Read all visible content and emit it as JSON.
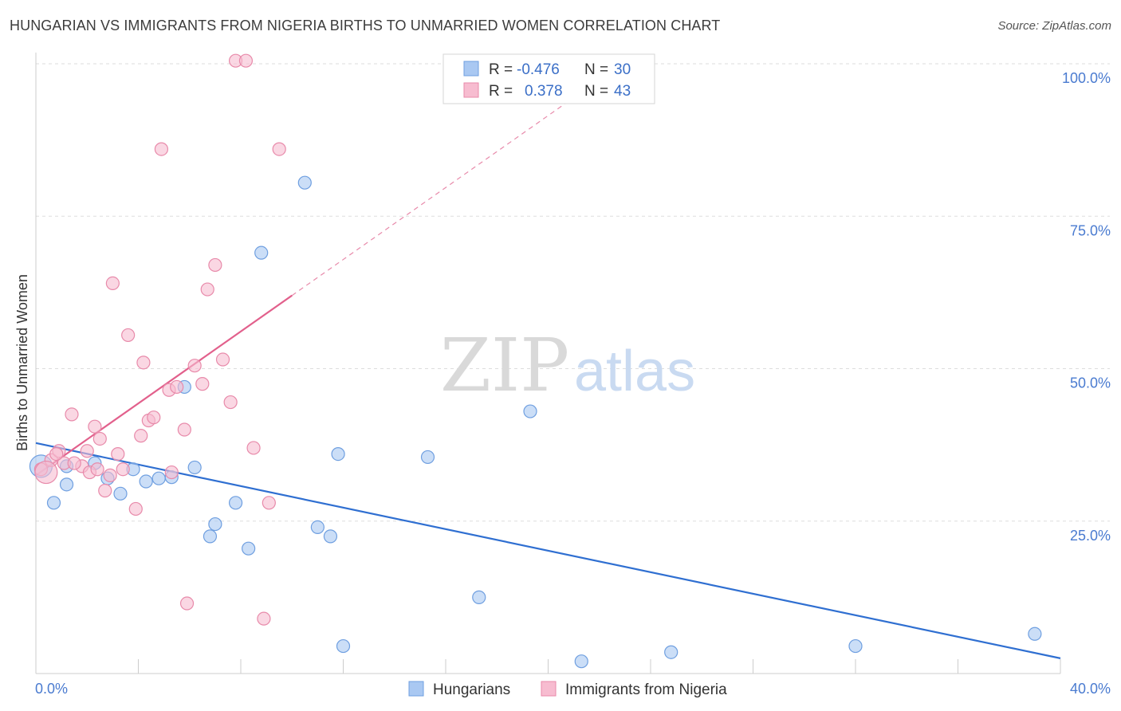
{
  "title": "HUNGARIAN VS IMMIGRANTS FROM NIGERIA BIRTHS TO UNMARRIED WOMEN CORRELATION CHART",
  "source": "Source: ZipAtlas.com",
  "watermark": {
    "part1": "ZIP",
    "part2": "atlas"
  },
  "legend_box": {
    "rows": [
      {
        "r_label": "R =",
        "r_value": "-0.476",
        "n_label": "N =",
        "n_value": "30",
        "color": "#a9c8f2",
        "stroke": "#6f9fe0"
      },
      {
        "r_label": "R =",
        "r_value": "0.378",
        "n_label": "N =",
        "n_value": "43",
        "color": "#f7bcd0",
        "stroke": "#e88aaa"
      }
    ]
  },
  "colors": {
    "blue_fill": "#a9c8f2",
    "blue_stroke": "#6f9fe0",
    "blue_line": "#2f6fd1",
    "pink_fill": "#f7bcd0",
    "pink_stroke": "#e88aaa",
    "pink_line": "#e2608c",
    "grid": "#dddddd",
    "axis_text": "#4a7bd0"
  },
  "chart_data": {
    "type": "scatter",
    "xlabel": "",
    "ylabel": "Births to Unmarried Women",
    "xlim": [
      0,
      40
    ],
    "ylim": [
      0,
      105
    ],
    "x_tick_labels": [
      "0.0%",
      "40.0%"
    ],
    "y_ticks": [
      25,
      50,
      75,
      100
    ],
    "y_tick_labels": [
      "25.0%",
      "50.0%",
      "75.0%",
      "100.0%"
    ],
    "legend": [
      "Hungarians",
      "Immigrants from Nigeria"
    ],
    "series": [
      {
        "name": "Hungarians",
        "points": [
          [
            0.2,
            34.0
          ],
          [
            0.7,
            28.0
          ],
          [
            1.2,
            31.0
          ],
          [
            2.3,
            34.5
          ],
          [
            2.8,
            32.0
          ],
          [
            3.3,
            29.5
          ],
          [
            3.8,
            33.5
          ],
          [
            4.3,
            31.5
          ],
          [
            4.8,
            32.0
          ],
          [
            5.3,
            32.2
          ],
          [
            5.8,
            47.0
          ],
          [
            6.2,
            33.8
          ],
          [
            6.8,
            22.5
          ],
          [
            7.0,
            24.5
          ],
          [
            7.8,
            28.0
          ],
          [
            8.3,
            20.5
          ],
          [
            8.8,
            69.0
          ],
          [
            10.5,
            80.5
          ],
          [
            11.0,
            24.0
          ],
          [
            11.5,
            22.5
          ],
          [
            11.8,
            36.0
          ],
          [
            12.0,
            4.5
          ],
          [
            15.3,
            35.5
          ],
          [
            17.3,
            12.5
          ],
          [
            19.3,
            43.0
          ],
          [
            21.3,
            2.0
          ],
          [
            24.8,
            3.5
          ],
          [
            32.0,
            4.5
          ],
          [
            39.0,
            6.5
          ],
          [
            1.2,
            34.0
          ]
        ],
        "trend": {
          "x": [
            0,
            40
          ],
          "y": [
            37.8,
            2.5
          ]
        }
      },
      {
        "name": "Immigrants from Nigeria",
        "points": [
          [
            0.2,
            33.5
          ],
          [
            0.6,
            35.0
          ],
          [
            0.9,
            36.5
          ],
          [
            1.1,
            34.5
          ],
          [
            1.4,
            42.5
          ],
          [
            1.8,
            34.0
          ],
          [
            2.0,
            36.5
          ],
          [
            2.1,
            33.0
          ],
          [
            2.3,
            40.5
          ],
          [
            2.5,
            38.5
          ],
          [
            2.7,
            30.0
          ],
          [
            2.9,
            32.5
          ],
          [
            3.0,
            64.0
          ],
          [
            3.2,
            36.0
          ],
          [
            3.4,
            33.5
          ],
          [
            3.6,
            55.5
          ],
          [
            3.9,
            27.0
          ],
          [
            4.1,
            39.0
          ],
          [
            4.2,
            51.0
          ],
          [
            4.4,
            41.5
          ],
          [
            4.6,
            42.0
          ],
          [
            4.9,
            86.0
          ],
          [
            5.2,
            46.5
          ],
          [
            5.3,
            33.0
          ],
          [
            5.5,
            47.0
          ],
          [
            5.8,
            40.0
          ],
          [
            5.9,
            11.5
          ],
          [
            6.2,
            50.5
          ],
          [
            6.5,
            47.5
          ],
          [
            6.7,
            63.0
          ],
          [
            7.0,
            67.0
          ],
          [
            7.3,
            51.5
          ],
          [
            7.6,
            44.5
          ],
          [
            7.8,
            100.5
          ],
          [
            8.2,
            100.5
          ],
          [
            8.5,
            37.0
          ],
          [
            8.9,
            9.0
          ],
          [
            9.1,
            28.0
          ],
          [
            9.5,
            86.0
          ],
          [
            1.5,
            34.5
          ],
          [
            0.8,
            36.0
          ],
          [
            2.4,
            33.5
          ],
          [
            0.4,
            33.0
          ]
        ],
        "trend": {
          "x": [
            0,
            10
          ],
          "y": [
            32.5,
            62.0
          ]
        },
        "trend_ext": {
          "x": [
            10,
            22
          ],
          "y": [
            62.0,
            97.4
          ]
        }
      }
    ]
  }
}
